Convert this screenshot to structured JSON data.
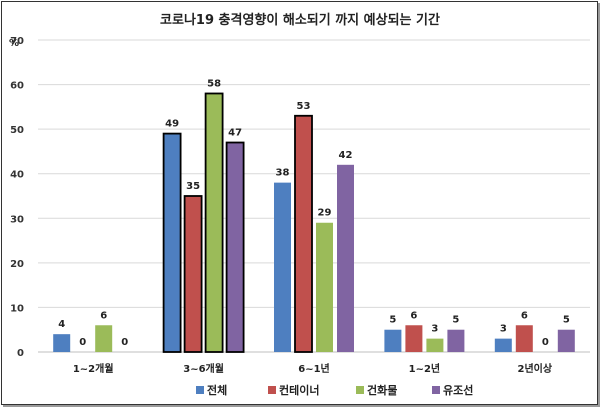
{
  "chart_data": {
    "type": "bar",
    "title": "코로나19 충격영향이 해소되기 까지 예상되는 기간",
    "unit": "%",
    "ylim": [
      0,
      70
    ],
    "yticks": [
      0,
      10,
      20,
      30,
      40,
      50,
      60,
      70
    ],
    "grid": true,
    "legend_position": "bottom",
    "categories": [
      "1~2개월",
      "3~6개월",
      "6~1년",
      "1~2년",
      "2년이상"
    ],
    "series": [
      {
        "name": "전체",
        "color": "#4e7fc0",
        "values": [
          4,
          49,
          38,
          5,
          3
        ]
      },
      {
        "name": "컨테이너",
        "color": "#c0504d",
        "values": [
          0,
          35,
          53,
          6,
          6
        ]
      },
      {
        "name": "건화물",
        "color": "#9bbb59",
        "values": [
          6,
          58,
          29,
          3,
          0
        ]
      },
      {
        "name": "유조선",
        "color": "#8064a2",
        "values": [
          0,
          47,
          42,
          5,
          5
        ]
      }
    ],
    "highlighted_category": "3~6개월",
    "highlighted_extra": [
      {
        "category": "6~1년",
        "series": "컨테이너"
      }
    ]
  }
}
